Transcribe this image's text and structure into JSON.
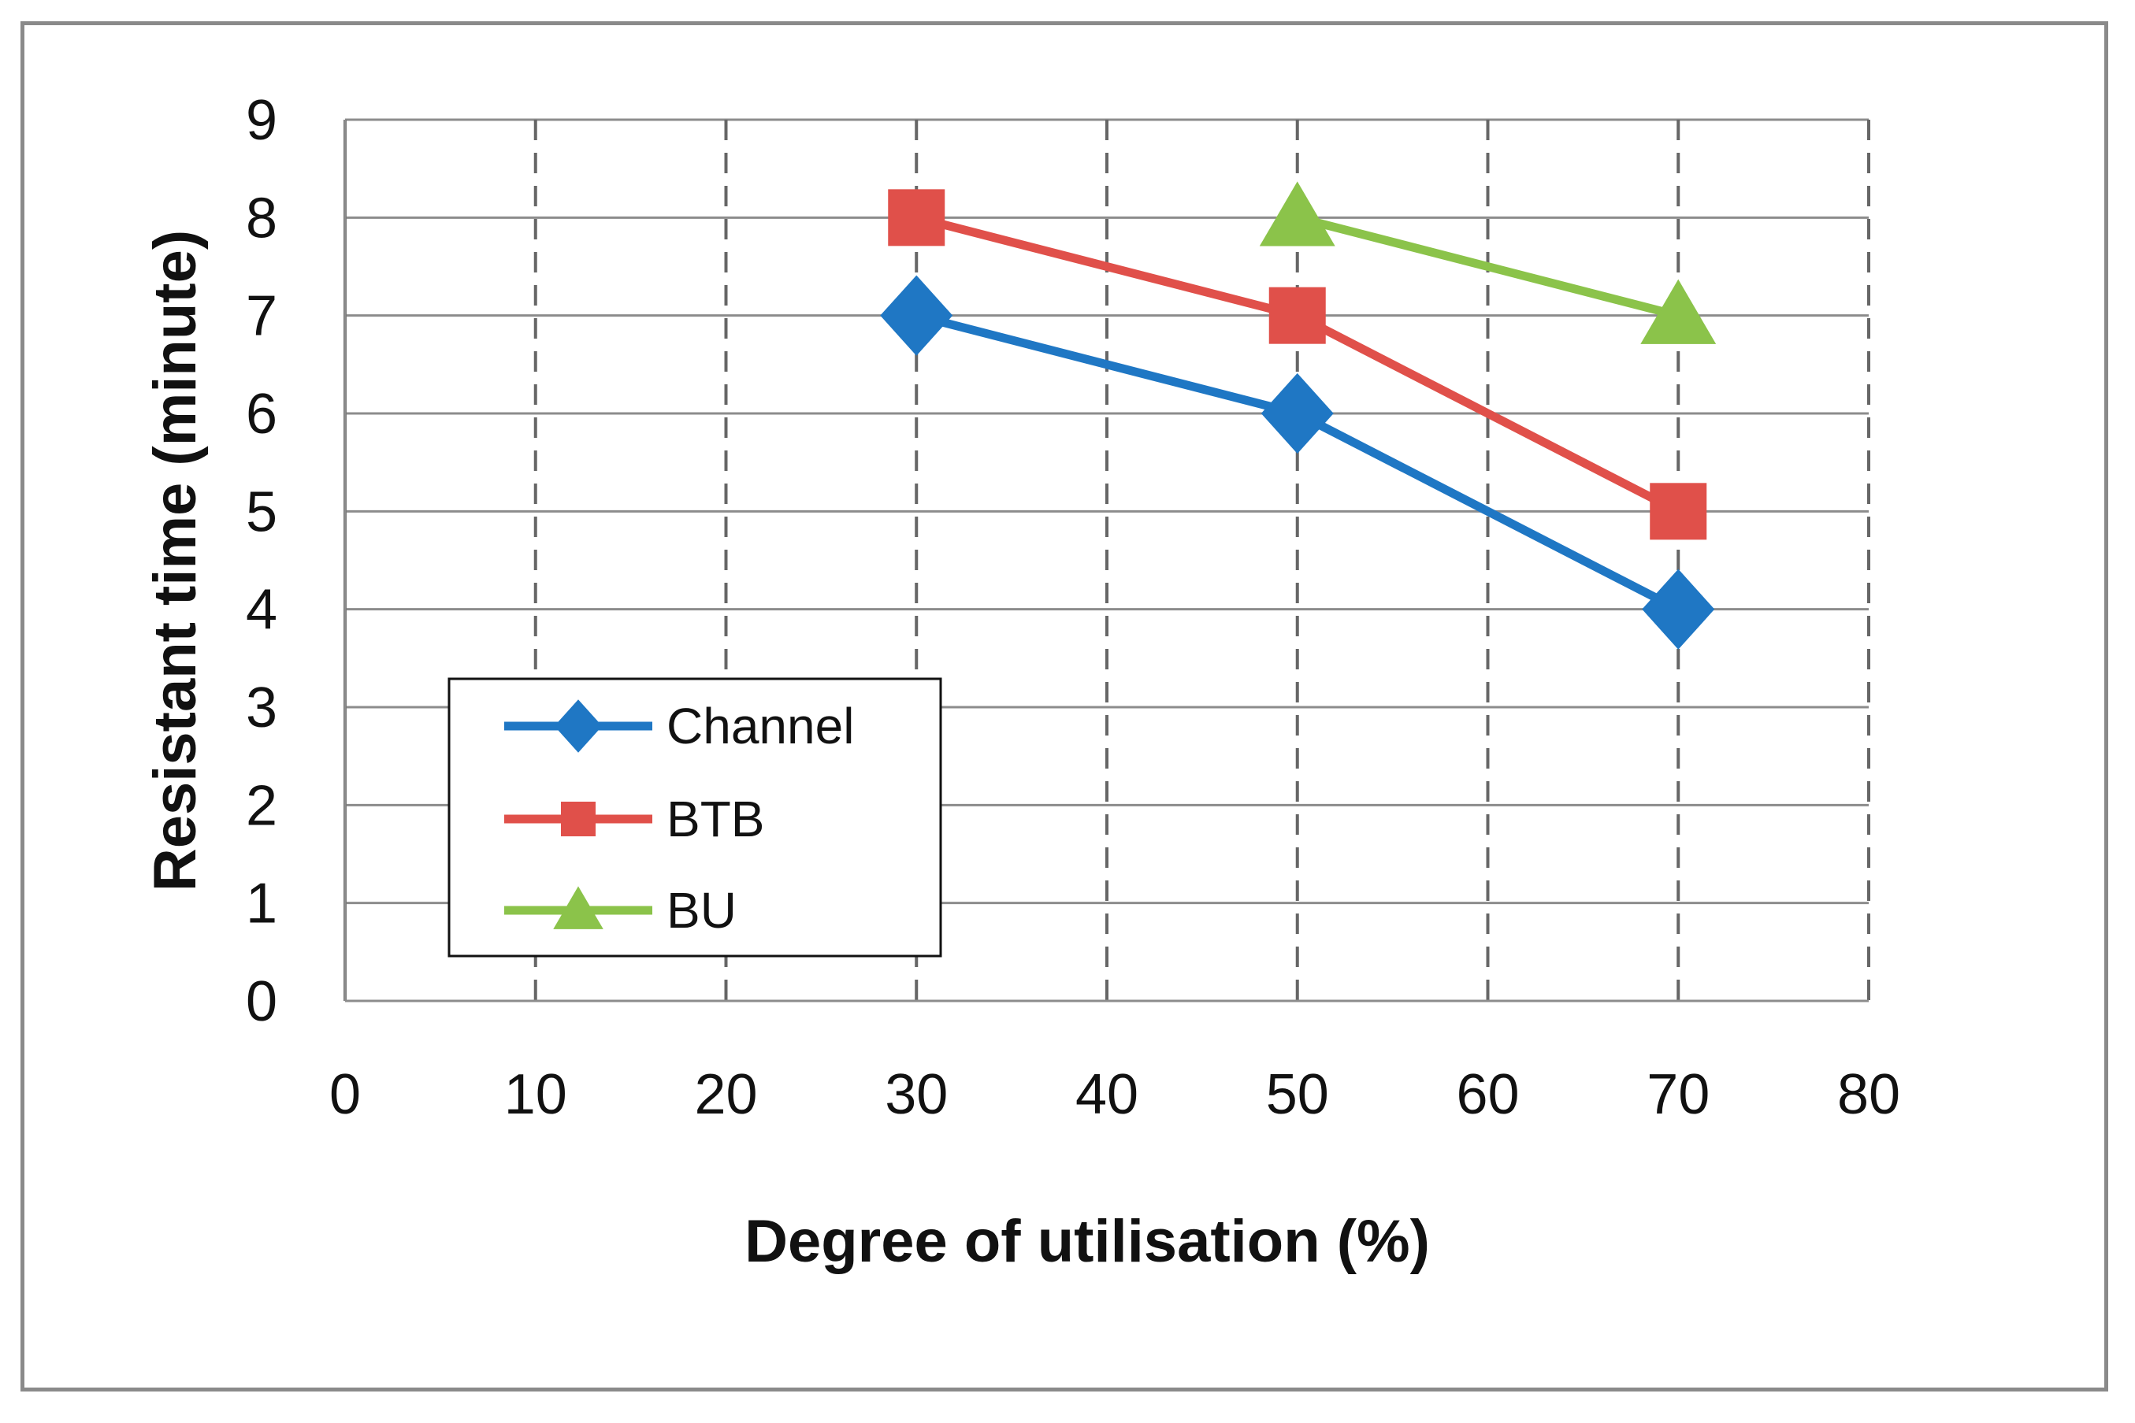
{
  "chart_data": {
    "type": "line",
    "title": "",
    "xlabel": "Degree of utilisation  (%)",
    "ylabel": "Resistant  time (minute)",
    "xlim": [
      0,
      80
    ],
    "ylim": [
      0,
      9
    ],
    "xticks": [
      0,
      10,
      20,
      30,
      40,
      50,
      60,
      70,
      80
    ],
    "yticks": [
      0,
      1,
      2,
      3,
      4,
      5,
      6,
      7,
      8,
      9
    ],
    "grid": {
      "horizontal": "solid",
      "vertical": "dashed"
    },
    "legend_position": "bottom-left",
    "series": [
      {
        "name": "Channel",
        "color": "#1f77c4",
        "marker": "diamond",
        "x": [
          30,
          50,
          70
        ],
        "y": [
          7,
          6,
          4
        ]
      },
      {
        "name": "BTB",
        "color": "#e0504a",
        "marker": "square",
        "x": [
          30,
          50,
          70
        ],
        "y": [
          8,
          7,
          5
        ]
      },
      {
        "name": "BU",
        "color": "#8bc34a",
        "marker": "triangle",
        "x": [
          50,
          70
        ],
        "y": [
          8,
          7
        ]
      }
    ]
  }
}
